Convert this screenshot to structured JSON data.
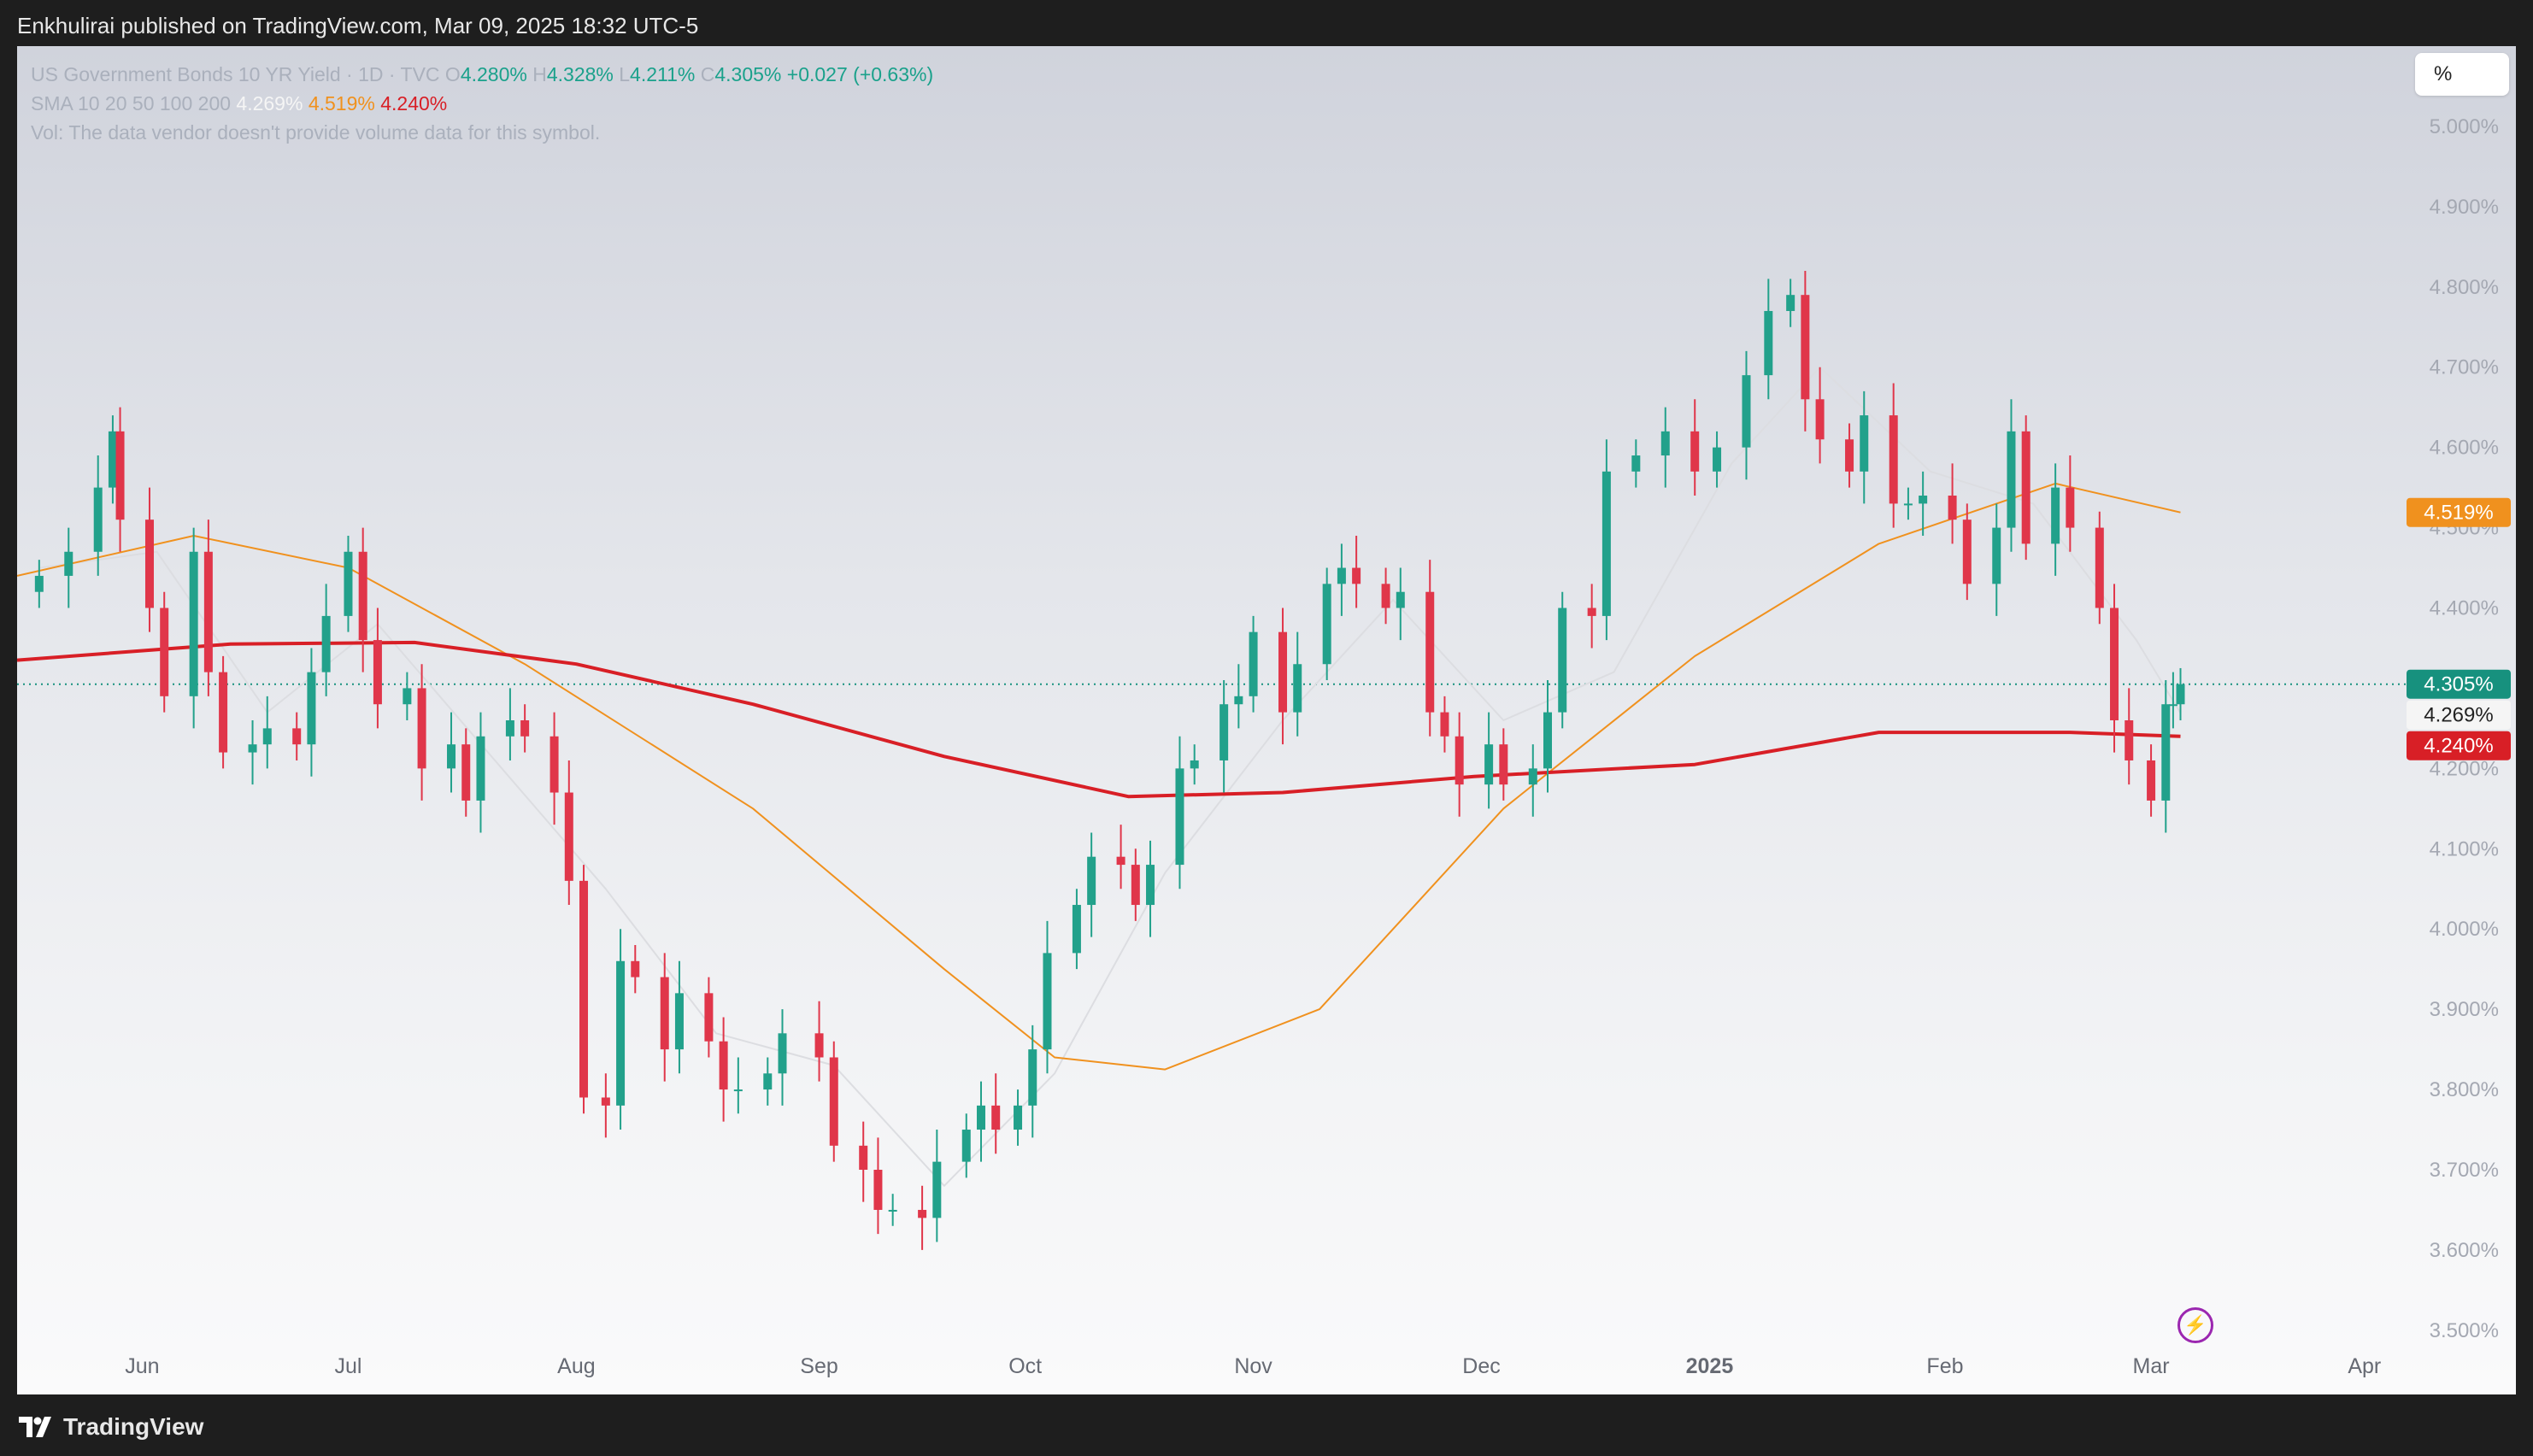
{
  "header": {
    "published": "Enkhulirai published on TradingView.com, Mar 09, 2025 18:32 UTC-5"
  },
  "footer": {
    "brand": "TradingView"
  },
  "toolbar": {
    "scale_button": "%"
  },
  "legend": {
    "symbol": "US Government Bonds 10 YR Yield · 1D · TVC",
    "o_label": "O",
    "o_value": "4.280%",
    "h_label": "H",
    "h_value": "4.328%",
    "l_label": "L",
    "l_value": "4.211%",
    "c_label": "C",
    "c_value": "4.305%",
    "change": "+0.027 (+0.63%)",
    "sma_label": "SMA 10 20 50 100 200",
    "sma_vals": [
      "4.269%",
      "4.519%",
      "4.240%"
    ],
    "vol_text": "Vol: The data vendor doesn't provide volume data for this symbol."
  },
  "colors": {
    "up": "#22a18b",
    "down": "#e0364a",
    "sma10": "#dcdde1",
    "sma100": "#f0911e",
    "sma200": "#d81f26",
    "last": "#17917e"
  },
  "chart_data": {
    "type": "candlestick",
    "ylim": [
      3.42,
      5.1
    ],
    "yticks": [
      "3.500%",
      "3.600%",
      "3.700%",
      "3.800%",
      "3.900%",
      "4.000%",
      "4.100%",
      "4.200%",
      "4.300%",
      "4.400%",
      "4.500%",
      "4.600%",
      "4.700%",
      "4.800%",
      "4.900%",
      "5.000%"
    ],
    "xticks": [
      {
        "label": "Jun",
        "date": "2024-06-03"
      },
      {
        "label": "Jul",
        "date": "2024-07-01"
      },
      {
        "label": "Aug",
        "date": "2024-08-01"
      },
      {
        "label": "Sep",
        "date": "2024-09-03"
      },
      {
        "label": "Oct",
        "date": "2024-10-01"
      },
      {
        "label": "Nov",
        "date": "2024-11-01"
      },
      {
        "label": "Dec",
        "date": "2024-12-02"
      },
      {
        "label": "2025",
        "date": "2025-01-02",
        "bold": true
      },
      {
        "label": "Feb",
        "date": "2025-02-03"
      },
      {
        "label": "Mar",
        "date": "2025-03-03"
      },
      {
        "label": "Apr",
        "date": "2025-04-01"
      }
    ],
    "price_tags": [
      {
        "label": "4.519%",
        "value": 4.519,
        "bg": "#f0911e",
        "fg": "#ffffff"
      },
      {
        "label": "4.305%",
        "value": 4.305,
        "bg": "#17917e",
        "fg": "#ffffff"
      },
      {
        "label": "4.269%",
        "value": 4.269,
        "bg": "#f5f5f5",
        "fg": "#222222"
      },
      {
        "label": "4.240%",
        "value": 4.24,
        "bg": "#d81f26",
        "fg": "#ffffff"
      }
    ],
    "last_close": 4.305,
    "closes": [
      {
        "d": "2024-05-20",
        "c": 4.44
      },
      {
        "d": "2024-05-24",
        "c": 4.47
      },
      {
        "d": "2024-05-28",
        "c": 4.55
      },
      {
        "d": "2024-05-30",
        "c": 4.62
      },
      {
        "d": "2024-05-31",
        "c": 4.51
      },
      {
        "d": "2024-06-04",
        "c": 4.4
      },
      {
        "d": "2024-06-06",
        "c": 4.29
      },
      {
        "d": "2024-06-10",
        "c": 4.47
      },
      {
        "d": "2024-06-12",
        "c": 4.32
      },
      {
        "d": "2024-06-14",
        "c": 4.22
      },
      {
        "d": "2024-06-18",
        "c": 4.23
      },
      {
        "d": "2024-06-20",
        "c": 4.25
      },
      {
        "d": "2024-06-24",
        "c": 4.23
      },
      {
        "d": "2024-06-26",
        "c": 4.32
      },
      {
        "d": "2024-06-28",
        "c": 4.39
      },
      {
        "d": "2024-07-01",
        "c": 4.47
      },
      {
        "d": "2024-07-03",
        "c": 4.36
      },
      {
        "d": "2024-07-05",
        "c": 4.28
      },
      {
        "d": "2024-07-09",
        "c": 4.3
      },
      {
        "d": "2024-07-11",
        "c": 4.2
      },
      {
        "d": "2024-07-15",
        "c": 4.23
      },
      {
        "d": "2024-07-17",
        "c": 4.16
      },
      {
        "d": "2024-07-19",
        "c": 4.24
      },
      {
        "d": "2024-07-23",
        "c": 4.26
      },
      {
        "d": "2024-07-25",
        "c": 4.24
      },
      {
        "d": "2024-07-29",
        "c": 4.17
      },
      {
        "d": "2024-07-31",
        "c": 4.06
      },
      {
        "d": "2024-08-02",
        "c": 3.79
      },
      {
        "d": "2024-08-05",
        "c": 3.78
      },
      {
        "d": "2024-08-07",
        "c": 3.96
      },
      {
        "d": "2024-08-09",
        "c": 3.94
      },
      {
        "d": "2024-08-13",
        "c": 3.85
      },
      {
        "d": "2024-08-15",
        "c": 3.92
      },
      {
        "d": "2024-08-19",
        "c": 3.86
      },
      {
        "d": "2024-08-21",
        "c": 3.8
      },
      {
        "d": "2024-08-23",
        "c": 3.8
      },
      {
        "d": "2024-08-27",
        "c": 3.82
      },
      {
        "d": "2024-08-29",
        "c": 3.87
      },
      {
        "d": "2024-09-03",
        "c": 3.84
      },
      {
        "d": "2024-09-05",
        "c": 3.73
      },
      {
        "d": "2024-09-09",
        "c": 3.7
      },
      {
        "d": "2024-09-11",
        "c": 3.65
      },
      {
        "d": "2024-09-13",
        "c": 3.65
      },
      {
        "d": "2024-09-17",
        "c": 3.64
      },
      {
        "d": "2024-09-19",
        "c": 3.71
      },
      {
        "d": "2024-09-23",
        "c": 3.75
      },
      {
        "d": "2024-09-25",
        "c": 3.78
      },
      {
        "d": "2024-09-27",
        "c": 3.75
      },
      {
        "d": "2024-09-30",
        "c": 3.78
      },
      {
        "d": "2024-10-02",
        "c": 3.85
      },
      {
        "d": "2024-10-04",
        "c": 3.97
      },
      {
        "d": "2024-10-08",
        "c": 4.03
      },
      {
        "d": "2024-10-10",
        "c": 4.09
      },
      {
        "d": "2024-10-14",
        "c": 4.08
      },
      {
        "d": "2024-10-16",
        "c": 4.03
      },
      {
        "d": "2024-10-18",
        "c": 4.08
      },
      {
        "d": "2024-10-22",
        "c": 4.2
      },
      {
        "d": "2024-10-24",
        "c": 4.21
      },
      {
        "d": "2024-10-28",
        "c": 4.28
      },
      {
        "d": "2024-10-30",
        "c": 4.29
      },
      {
        "d": "2024-11-01",
        "c": 4.37
      },
      {
        "d": "2024-11-05",
        "c": 4.27
      },
      {
        "d": "2024-11-07",
        "c": 4.33
      },
      {
        "d": "2024-11-11",
        "c": 4.43
      },
      {
        "d": "2024-11-13",
        "c": 4.45
      },
      {
        "d": "2024-11-15",
        "c": 4.43
      },
      {
        "d": "2024-11-19",
        "c": 4.4
      },
      {
        "d": "2024-11-21",
        "c": 4.42
      },
      {
        "d": "2024-11-25",
        "c": 4.27
      },
      {
        "d": "2024-11-27",
        "c": 4.24
      },
      {
        "d": "2024-11-29",
        "c": 4.18
      },
      {
        "d": "2024-12-03",
        "c": 4.23
      },
      {
        "d": "2024-12-05",
        "c": 4.18
      },
      {
        "d": "2024-12-09",
        "c": 4.2
      },
      {
        "d": "2024-12-11",
        "c": 4.27
      },
      {
        "d": "2024-12-13",
        "c": 4.4
      },
      {
        "d": "2024-12-17",
        "c": 4.39
      },
      {
        "d": "2024-12-19",
        "c": 4.57
      },
      {
        "d": "2024-12-23",
        "c": 4.59
      },
      {
        "d": "2024-12-27",
        "c": 4.62
      },
      {
        "d": "2024-12-31",
        "c": 4.57
      },
      {
        "d": "2025-01-03",
        "c": 4.6
      },
      {
        "d": "2025-01-07",
        "c": 4.69
      },
      {
        "d": "2025-01-10",
        "c": 4.77
      },
      {
        "d": "2025-01-13",
        "c": 4.79
      },
      {
        "d": "2025-01-15",
        "c": 4.66
      },
      {
        "d": "2025-01-17",
        "c": 4.61
      },
      {
        "d": "2025-01-21",
        "c": 4.57
      },
      {
        "d": "2025-01-23",
        "c": 4.64
      },
      {
        "d": "2025-01-27",
        "c": 4.53
      },
      {
        "d": "2025-01-29",
        "c": 4.53
      },
      {
        "d": "2025-01-31",
        "c": 4.54
      },
      {
        "d": "2025-02-04",
        "c": 4.51
      },
      {
        "d": "2025-02-06",
        "c": 4.43
      },
      {
        "d": "2025-02-10",
        "c": 4.5
      },
      {
        "d": "2025-02-12",
        "c": 4.62
      },
      {
        "d": "2025-02-14",
        "c": 4.48
      },
      {
        "d": "2025-02-18",
        "c": 4.55
      },
      {
        "d": "2025-02-20",
        "c": 4.5
      },
      {
        "d": "2025-02-24",
        "c": 4.4
      },
      {
        "d": "2025-02-26",
        "c": 4.26
      },
      {
        "d": "2025-02-28",
        "c": 4.21
      },
      {
        "d": "2025-03-03",
        "c": 4.16
      },
      {
        "d": "2025-03-05",
        "c": 4.28
      },
      {
        "d": "2025-03-06",
        "c": 4.28
      },
      {
        "d": "2025-03-07",
        "c": 4.305
      }
    ],
    "sma200": [
      {
        "d": "2024-05-17",
        "v": 4.335
      },
      {
        "d": "2024-06-15",
        "v": 4.355
      },
      {
        "d": "2024-07-10",
        "v": 4.357
      },
      {
        "d": "2024-08-01",
        "v": 4.33
      },
      {
        "d": "2024-08-25",
        "v": 4.28
      },
      {
        "d": "2024-09-20",
        "v": 4.215
      },
      {
        "d": "2024-10-15",
        "v": 4.165
      },
      {
        "d": "2024-11-05",
        "v": 4.17
      },
      {
        "d": "2024-12-01",
        "v": 4.19
      },
      {
        "d": "2024-12-31",
        "v": 4.205
      },
      {
        "d": "2025-01-25",
        "v": 4.245
      },
      {
        "d": "2025-02-20",
        "v": 4.245
      },
      {
        "d": "2025-03-07",
        "v": 4.24
      }
    ],
    "sma100": [
      {
        "d": "2024-05-17",
        "v": 4.44
      },
      {
        "d": "2024-06-10",
        "v": 4.49
      },
      {
        "d": "2024-07-01",
        "v": 4.45
      },
      {
        "d": "2024-07-25",
        "v": 4.33
      },
      {
        "d": "2024-08-25",
        "v": 4.15
      },
      {
        "d": "2024-09-20",
        "v": 3.95
      },
      {
        "d": "2024-10-05",
        "v": 3.84
      },
      {
        "d": "2024-10-20",
        "v": 3.825
      },
      {
        "d": "2024-11-10",
        "v": 3.9
      },
      {
        "d": "2024-12-05",
        "v": 4.15
      },
      {
        "d": "2024-12-31",
        "v": 4.34
      },
      {
        "d": "2025-01-25",
        "v": 4.48
      },
      {
        "d": "2025-02-18",
        "v": 4.555
      },
      {
        "d": "2025-03-07",
        "v": 4.519
      }
    ],
    "sma10": [
      {
        "d": "2024-05-20",
        "v": 4.45
      },
      {
        "d": "2024-06-05",
        "v": 4.47
      },
      {
        "d": "2024-06-20",
        "v": 4.27
      },
      {
        "d": "2024-07-05",
        "v": 4.38
      },
      {
        "d": "2024-07-20",
        "v": 4.22
      },
      {
        "d": "2024-08-05",
        "v": 4.05
      },
      {
        "d": "2024-08-20",
        "v": 3.87
      },
      {
        "d": "2024-09-05",
        "v": 3.83
      },
      {
        "d": "2024-09-20",
        "v": 3.68
      },
      {
        "d": "2024-10-05",
        "v": 3.82
      },
      {
        "d": "2024-10-20",
        "v": 4.07
      },
      {
        "d": "2024-11-05",
        "v": 4.26
      },
      {
        "d": "2024-11-20",
        "v": 4.41
      },
      {
        "d": "2024-12-05",
        "v": 4.26
      },
      {
        "d": "2024-12-20",
        "v": 4.32
      },
      {
        "d": "2025-01-05",
        "v": 4.58
      },
      {
        "d": "2025-01-17",
        "v": 4.7
      },
      {
        "d": "2025-02-01",
        "v": 4.57
      },
      {
        "d": "2025-02-15",
        "v": 4.53
      },
      {
        "d": "2025-03-01",
        "v": 4.36
      },
      {
        "d": "2025-03-07",
        "v": 4.269
      }
    ]
  }
}
